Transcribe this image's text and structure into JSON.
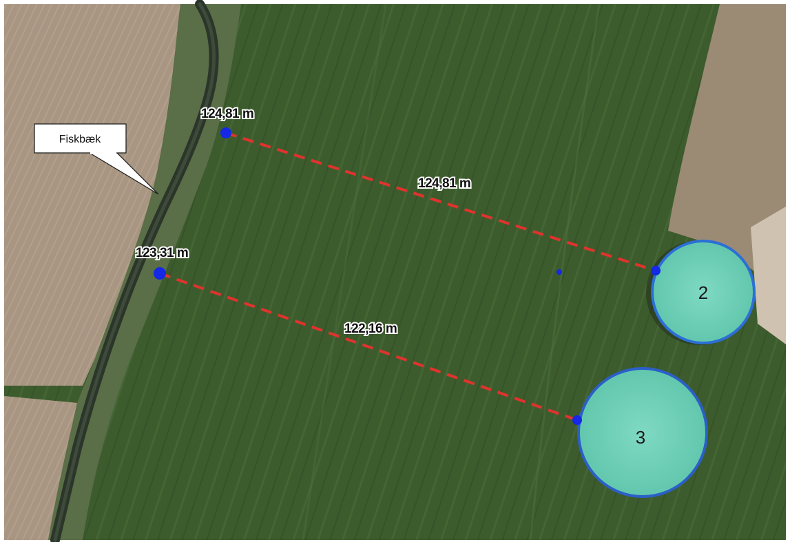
{
  "map": {
    "callout": {
      "label": "Fiskbæk",
      "icon": "callout-pointer"
    },
    "measurements": [
      {
        "start_label": "124,81 m",
        "mid_label": "124,81 m",
        "target_tank": "2"
      },
      {
        "start_label": "123,31 m",
        "mid_label": "122,16 m",
        "target_tank": "3"
      }
    ],
    "tanks": [
      {
        "number": "2"
      },
      {
        "number": "3"
      }
    ],
    "colors": {
      "measure_line": "#e0332e",
      "vertex": "#1428e6",
      "tank_fill": "#6fd0b8",
      "tank_outline": "#2b6fd6",
      "field": "#3c5a2c",
      "stream": "#2f3a2e"
    }
  }
}
